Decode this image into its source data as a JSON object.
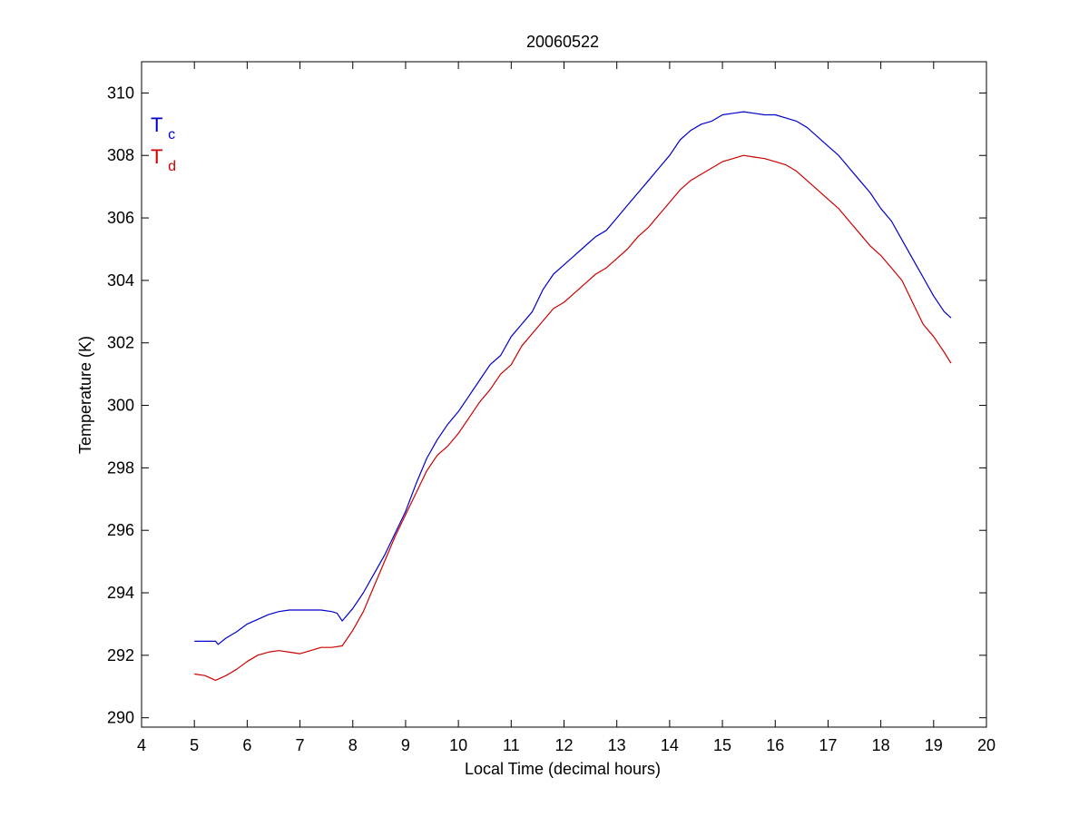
{
  "chart_data": {
    "type": "line",
    "title": "20060522",
    "xlabel": "Local Time (decimal hours)",
    "ylabel": "Temperature (K)",
    "xlim": [
      4,
      20
    ],
    "ylim": [
      289.7,
      311.0
    ],
    "xticks": [
      4,
      5,
      6,
      7,
      8,
      9,
      10,
      11,
      12,
      13,
      14,
      15,
      16,
      17,
      18,
      19,
      20
    ],
    "yticks": [
      290,
      292,
      294,
      296,
      298,
      300,
      302,
      304,
      306,
      308,
      310
    ],
    "grid": false,
    "legend_position": "top-left",
    "legend": [
      {
        "base": "T",
        "sub": "c",
        "color": "#0000cc"
      },
      {
        "base": "T",
        "sub": "d",
        "color": "#cc0000"
      }
    ],
    "series": [
      {
        "color": "#0000cc",
        "x": [
          5.0,
          5.4,
          5.45,
          5.6,
          5.8,
          6.0,
          6.2,
          6.4,
          6.6,
          6.8,
          7.0,
          7.2,
          7.4,
          7.6,
          7.7,
          7.8,
          8.0,
          8.2,
          8.4,
          8.6,
          8.8,
          9.0,
          9.2,
          9.4,
          9.6,
          9.8,
          10.0,
          10.2,
          10.4,
          10.6,
          10.8,
          11.0,
          11.2,
          11.4,
          11.6,
          11.8,
          12.0,
          12.2,
          12.4,
          12.6,
          12.8,
          13.0,
          13.2,
          13.4,
          13.6,
          13.8,
          14.0,
          14.2,
          14.4,
          14.6,
          14.8,
          15.0,
          15.2,
          15.4,
          15.6,
          15.8,
          16.0,
          16.2,
          16.4,
          16.6,
          16.8,
          17.0,
          17.2,
          17.4,
          17.6,
          17.8,
          18.0,
          18.2,
          18.4,
          18.6,
          18.8,
          19.0,
          19.2,
          19.33
        ],
        "y": [
          292.45,
          292.45,
          292.35,
          292.55,
          292.75,
          293.0,
          293.15,
          293.3,
          293.4,
          293.45,
          293.45,
          293.45,
          293.45,
          293.4,
          293.35,
          293.1,
          293.5,
          294.0,
          294.6,
          295.2,
          295.9,
          296.6,
          297.5,
          298.3,
          298.9,
          299.4,
          299.8,
          300.3,
          300.8,
          301.3,
          301.6,
          302.2,
          302.6,
          303.0,
          303.7,
          304.2,
          304.5,
          304.8,
          305.1,
          305.4,
          305.6,
          306.0,
          306.4,
          306.8,
          307.2,
          307.6,
          308.0,
          308.5,
          308.8,
          309.0,
          309.1,
          309.3,
          309.35,
          309.4,
          309.35,
          309.3,
          309.3,
          309.2,
          309.1,
          308.9,
          308.6,
          308.3,
          308.0,
          307.6,
          307.2,
          306.8,
          306.3,
          305.9,
          305.3,
          304.7,
          304.1,
          303.5,
          303.0,
          302.8
        ]
      },
      {
        "color": "#cc0000",
        "x": [
          5.0,
          5.2,
          5.4,
          5.6,
          5.8,
          6.0,
          6.2,
          6.4,
          6.6,
          6.8,
          7.0,
          7.2,
          7.4,
          7.6,
          7.8,
          8.0,
          8.2,
          8.4,
          8.6,
          8.8,
          9.0,
          9.2,
          9.4,
          9.6,
          9.8,
          10.0,
          10.2,
          10.4,
          10.6,
          10.8,
          11.0,
          11.2,
          11.4,
          11.6,
          11.8,
          12.0,
          12.2,
          12.4,
          12.6,
          12.8,
          13.0,
          13.2,
          13.4,
          13.6,
          13.8,
          14.0,
          14.2,
          14.4,
          14.6,
          14.8,
          15.0,
          15.2,
          15.4,
          15.6,
          15.8,
          16.0,
          16.2,
          16.4,
          16.6,
          16.8,
          17.0,
          17.2,
          17.4,
          17.6,
          17.8,
          18.0,
          18.2,
          18.4,
          18.6,
          18.8,
          19.0,
          19.2,
          19.33
        ],
        "y": [
          291.4,
          291.35,
          291.2,
          291.35,
          291.55,
          291.8,
          292.0,
          292.1,
          292.15,
          292.1,
          292.05,
          292.15,
          292.25,
          292.25,
          292.3,
          292.8,
          293.4,
          294.2,
          295.0,
          295.8,
          296.5,
          297.2,
          297.9,
          298.4,
          298.7,
          299.1,
          299.6,
          300.1,
          300.5,
          301.0,
          301.3,
          301.9,
          302.3,
          302.7,
          303.1,
          303.3,
          303.6,
          303.9,
          304.2,
          304.4,
          304.7,
          305.0,
          305.4,
          305.7,
          306.1,
          306.5,
          306.9,
          307.2,
          307.4,
          307.6,
          307.8,
          307.9,
          308.0,
          307.95,
          307.9,
          307.8,
          307.7,
          307.5,
          307.2,
          306.9,
          306.6,
          306.3,
          305.9,
          305.5,
          305.1,
          304.8,
          304.4,
          304.0,
          303.3,
          302.6,
          302.2,
          301.7,
          301.35
        ]
      }
    ]
  }
}
